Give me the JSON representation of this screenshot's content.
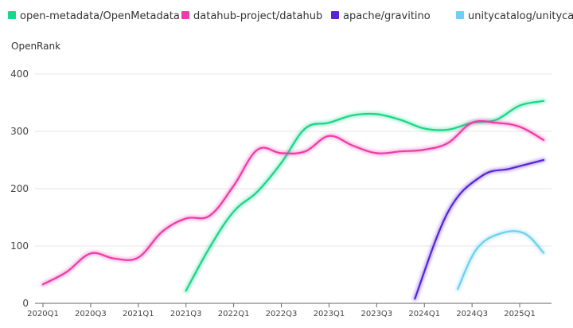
{
  "chart_data": {
    "type": "line",
    "ylabel": "OpenRank",
    "ylim": [
      0,
      400
    ],
    "yticks": [
      0,
      100,
      200,
      300,
      400
    ],
    "grid": true,
    "legend_position": "top",
    "x_categories": [
      "2020Q1",
      "2020Q3",
      "2021Q1",
      "2021Q3",
      "2022Q1",
      "2022Q3",
      "2023Q1",
      "2023Q3",
      "2024Q1",
      "2024Q3",
      "2025Q1"
    ],
    "series": [
      {
        "name": "open-metadata/OpenMetadata",
        "color": "#19d68a",
        "points": [
          [
            2021.5,
            22
          ],
          [
            2021.75,
            98
          ],
          [
            2022.0,
            160
          ],
          [
            2022.25,
            195
          ],
          [
            2022.5,
            245
          ],
          [
            2022.75,
            305
          ],
          [
            2023.0,
            315
          ],
          [
            2023.25,
            328
          ],
          [
            2023.5,
            330
          ],
          [
            2023.75,
            320
          ],
          [
            2024.0,
            305
          ],
          [
            2024.25,
            303
          ],
          [
            2024.5,
            315
          ],
          [
            2024.75,
            320
          ],
          [
            2025.0,
            345
          ],
          [
            2025.25,
            353
          ]
        ]
      },
      {
        "name": "datahub-project/datahub",
        "color": "#ee3ca8",
        "points": [
          [
            2020.0,
            33
          ],
          [
            2020.25,
            55
          ],
          [
            2020.5,
            87
          ],
          [
            2020.75,
            78
          ],
          [
            2021.0,
            80
          ],
          [
            2021.25,
            125
          ],
          [
            2021.5,
            148
          ],
          [
            2021.75,
            153
          ],
          [
            2022.0,
            205
          ],
          [
            2022.25,
            268
          ],
          [
            2022.5,
            262
          ],
          [
            2022.75,
            265
          ],
          [
            2023.0,
            292
          ],
          [
            2023.25,
            275
          ],
          [
            2023.5,
            262
          ],
          [
            2023.75,
            265
          ],
          [
            2024.0,
            268
          ],
          [
            2024.25,
            280
          ],
          [
            2024.5,
            315
          ],
          [
            2024.75,
            315
          ],
          [
            2025.0,
            308
          ],
          [
            2025.25,
            285
          ]
        ]
      },
      {
        "name": "apache/gravitino",
        "color": "#5a24d9",
        "points": [
          [
            2023.9,
            8
          ],
          [
            2024.25,
            160
          ],
          [
            2024.6,
            222
          ],
          [
            2024.9,
            235
          ],
          [
            2025.25,
            250
          ]
        ]
      },
      {
        "name": "unitycatalog/unitycatalog",
        "color": "#6ed0f4",
        "points": [
          [
            2024.35,
            25
          ],
          [
            2024.55,
            95
          ],
          [
            2024.8,
            122
          ],
          [
            2025.05,
            122
          ],
          [
            2025.25,
            88
          ]
        ]
      }
    ]
  }
}
